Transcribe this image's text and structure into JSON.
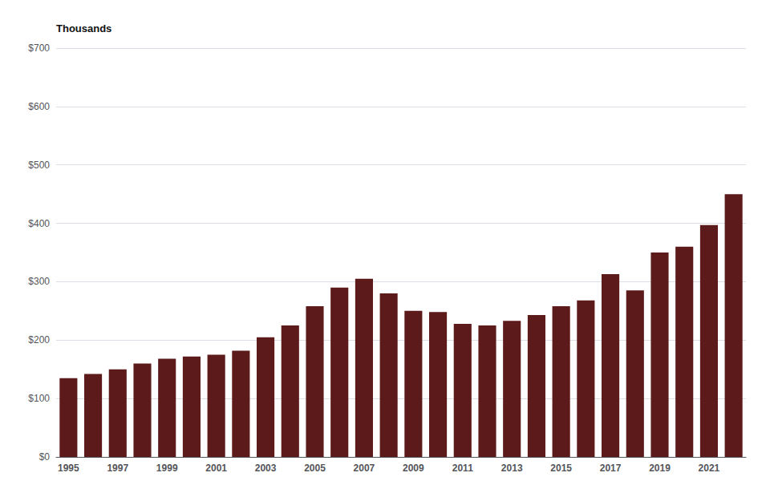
{
  "chart_data": {
    "type": "bar",
    "ylabel": "Thousands",
    "categories": [
      "1995",
      null,
      "1997",
      null,
      "1999",
      null,
      "2001",
      null,
      "2003",
      null,
      "2005",
      null,
      "2007",
      null,
      "2009",
      null,
      "2011",
      null,
      "2013",
      null,
      "2015",
      null,
      "2017",
      null,
      "2019",
      null,
      "2021",
      null
    ],
    "values": [
      135,
      142,
      150,
      160,
      168,
      172,
      175,
      182,
      205,
      225,
      258,
      290,
      305,
      280,
      250,
      248,
      228,
      225,
      233,
      243,
      258,
      268,
      313,
      285,
      350,
      360,
      397,
      450
    ],
    "color": "#5C1A1A",
    "ylim": [
      0,
      700
    ],
    "yticks": [
      {
        "value": 0,
        "label": "$0"
      },
      {
        "value": 100,
        "label": "$100"
      },
      {
        "value": 200,
        "label": "$200"
      },
      {
        "value": 300,
        "label": "$300"
      },
      {
        "value": 400,
        "label": "$400"
      },
      {
        "value": 500,
        "label": "$500"
      },
      {
        "value": 600,
        "label": "$600"
      },
      {
        "value": 700,
        "label": "$700"
      }
    ],
    "grid": true
  }
}
